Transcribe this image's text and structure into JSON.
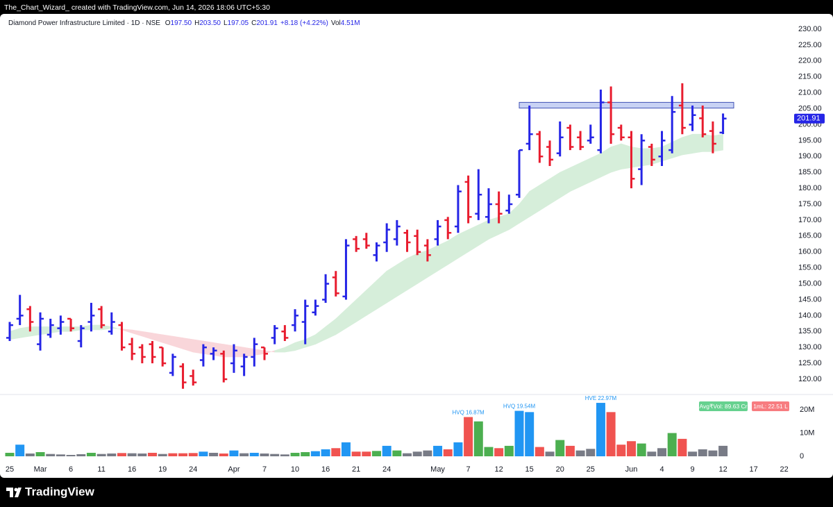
{
  "header": {
    "watermark": "The_Chart_Wizard_ created with TradingView.com, Jun 14, 2026 18:06 UTC+5:30"
  },
  "footer": {
    "logo": "TradingView"
  },
  "chart_data": {
    "type": "ohlc",
    "title": "Diamond Power Infrastructure Limited · 1D · NSE",
    "legend_ohlc": [
      {
        "key": "O",
        "value": "197.50"
      },
      {
        "key": "H",
        "value": "203.50"
      },
      {
        "key": "L",
        "value": "197.05"
      },
      {
        "key": "C",
        "value": "201.91"
      }
    ],
    "change": "+8.18 (+4.22%)",
    "vol_key": "Vol",
    "vol_value": "4.51M",
    "up_color": "#2525e6",
    "down_color": "#e81c2e",
    "categories": [
      "25",
      null,
      null,
      "Mar",
      null,
      null,
      "6",
      null,
      null,
      "11",
      null,
      null,
      "16",
      null,
      null,
      "19",
      null,
      null,
      "24",
      null,
      null,
      null,
      "Apr",
      null,
      null,
      "7",
      null,
      null,
      "10",
      null,
      null,
      "16",
      null,
      null,
      "21",
      null,
      null,
      "24",
      null,
      null,
      null,
      null,
      "May",
      null,
      null,
      "7",
      null,
      null,
      "12",
      null,
      null,
      "15",
      null,
      null,
      "20",
      null,
      null,
      "25",
      null,
      null,
      null,
      "Jun",
      null,
      null,
      "4",
      null,
      null,
      "9",
      null,
      null,
      "12",
      null,
      null,
      "17",
      null,
      null,
      "22"
    ],
    "open": [
      133,
      139,
      142,
      131,
      134,
      136,
      139,
      132,
      138,
      142,
      135,
      137,
      131,
      130,
      131,
      130,
      122,
      124,
      121,
      126,
      128,
      128,
      125,
      124,
      127,
      130,
      133,
      135,
      137,
      138,
      141,
      145,
      152,
      146,
      164,
      164,
      159,
      163,
      164,
      166,
      165,
      162,
      164,
      170,
      168,
      182,
      172,
      171,
      175,
      173,
      178,
      194,
      197,
      193,
      191,
      199,
      196,
      195,
      192,
      207,
      199,
      196,
      186,
      193,
      190,
      192,
      206,
      200,
      202,
      198,
      197.5,
      null,
      null,
      null,
      null,
      null,
      null
    ],
    "high": [
      138,
      146.5,
      143,
      141,
      139,
      140,
      139,
      137,
      144,
      143,
      141,
      138,
      133,
      131,
      132,
      130,
      128,
      125,
      123,
      131,
      130,
      129,
      131,
      128,
      133,
      130,
      137,
      137,
      142,
      145,
      145,
      153,
      154,
      164,
      165,
      166,
      163,
      169,
      170,
      167,
      167,
      164,
      170,
      171,
      181,
      184,
      186,
      180,
      179,
      178,
      192,
      206,
      198,
      195,
      201,
      200,
      198,
      200,
      211,
      212,
      200,
      198,
      197,
      194,
      198,
      209,
      213,
      206,
      206,
      201,
      203.5,
      null,
      null,
      null,
      null,
      null,
      null
    ],
    "low": [
      132,
      137,
      135,
      129,
      133,
      134,
      135,
      130,
      135,
      136,
      134,
      129,
      126,
      125,
      125,
      124,
      121,
      117,
      118,
      124,
      126,
      119,
      122,
      121,
      124,
      126,
      131,
      132,
      135,
      131,
      140,
      144,
      146,
      145,
      160,
      161,
      157,
      160,
      162,
      160,
      159,
      157,
      162,
      164,
      166,
      169,
      170,
      169,
      169,
      172,
      177,
      192,
      188,
      187,
      190,
      192,
      192,
      194,
      191,
      194,
      195,
      180,
      181,
      187,
      187,
      191,
      197,
      198,
      196,
      191,
      197.05,
      null,
      null,
      null,
      null,
      null,
      null
    ],
    "close": [
      137,
      140,
      138,
      139,
      137,
      138,
      136,
      136,
      140,
      137,
      138,
      130,
      128,
      127,
      127,
      125,
      127,
      119,
      119,
      130,
      129,
      120,
      129,
      127,
      131,
      128,
      136,
      133,
      140,
      143,
      143,
      150,
      147,
      162,
      161,
      162,
      162,
      167,
      168,
      163,
      160,
      159,
      168,
      166,
      179,
      171,
      178,
      175,
      172,
      175,
      192,
      197,
      190,
      189,
      196,
      193,
      193,
      196,
      207,
      197,
      196,
      183,
      195,
      189,
      195,
      204,
      199,
      203,
      197,
      194,
      201.91,
      null,
      null,
      null,
      null,
      null,
      null
    ],
    "cloud_fast": [
      135,
      136,
      136.5,
      136.5,
      136.5,
      136.5,
      136.5,
      136.5,
      137,
      137,
      136.5,
      135.5,
      134.5,
      133.5,
      132.5,
      131.5,
      130.5,
      129.5,
      128.5,
      128,
      127.5,
      127,
      127,
      127,
      127.5,
      128,
      129,
      130,
      131.5,
      132.5,
      134,
      136.5,
      139,
      142,
      145,
      148,
      151,
      154,
      156,
      158,
      159.5,
      160.5,
      162,
      163.5,
      165.5,
      167,
      168.5,
      170,
      171,
      172,
      175,
      179,
      181,
      183,
      185,
      186.5,
      188,
      189.5,
      191,
      193,
      194,
      193,
      192.5,
      192.5,
      193,
      194.5,
      196,
      197,
      197,
      196.5,
      197,
      null,
      null,
      null,
      null,
      null,
      null
    ],
    "cloud_slow": [
      132.5,
      133,
      133.5,
      134,
      134.5,
      135,
      135,
      135.5,
      135.5,
      135.5,
      136,
      135.8,
      135.5,
      135,
      134.5,
      134,
      133.5,
      133,
      132.5,
      132,
      131.5,
      131,
      130.5,
      130,
      129.5,
      129,
      128.5,
      128.5,
      129,
      130,
      131,
      132.5,
      134,
      136,
      138,
      140,
      142,
      144,
      146,
      148,
      150,
      152,
      154,
      156,
      158,
      160,
      162,
      164,
      165.5,
      167,
      169,
      171,
      173,
      175,
      177,
      179,
      180.5,
      182,
      183.5,
      185,
      186,
      186.5,
      187,
      187.5,
      188.5,
      189.5,
      190.5,
      191,
      191.5,
      191.5,
      192,
      null,
      null,
      null,
      null,
      null,
      null
    ],
    "cloud_up_color": "#d6eeda",
    "cloud_down_color": "#f9d6da",
    "zone": [
      205.2,
      207
    ],
    "zone_color": "#c8d2f4",
    "ylim": [
      120,
      230
    ],
    "yticks": [
      {
        "value": 120,
        "label": "120.00"
      },
      {
        "value": 125,
        "label": "125.00"
      },
      {
        "value": 130,
        "label": "130.00"
      },
      {
        "value": 135,
        "label": "135.00"
      },
      {
        "value": 140,
        "label": "140.00"
      },
      {
        "value": 145,
        "label": "145.00"
      },
      {
        "value": 150,
        "label": "150.00"
      },
      {
        "value": 155,
        "label": "155.00"
      },
      {
        "value": 160,
        "label": "160.00"
      },
      {
        "value": 165,
        "label": "165.00"
      },
      {
        "value": 170,
        "label": "170.00"
      },
      {
        "value": 175,
        "label": "175.00"
      },
      {
        "value": 180,
        "label": "180.00"
      },
      {
        "value": 185,
        "label": "185.00"
      },
      {
        "value": 190,
        "label": "190.00"
      },
      {
        "value": 195,
        "label": "195.00"
      },
      {
        "value": 200,
        "label": "200.00"
      },
      {
        "value": 205,
        "label": "205.00"
      },
      {
        "value": 210,
        "label": "210.00"
      },
      {
        "value": 215,
        "label": "215.00"
      },
      {
        "value": 220,
        "label": "220.00"
      },
      {
        "value": 225,
        "label": "225.00"
      },
      {
        "value": 230,
        "label": "230.00"
      }
    ],
    "last_price": {
      "value": 201.91,
      "label": "201.91"
    },
    "volume": {
      "values": [
        1.5,
        5.0,
        1.2,
        1.8,
        1.0,
        0.8,
        0.6,
        0.9,
        1.5,
        1.0,
        1.2,
        1.4,
        1.3,
        1.2,
        1.5,
        1.0,
        1.3,
        1.3,
        1.4,
        2.0,
        1.5,
        1.2,
        2.5,
        1.3,
        1.5,
        1.2,
        1.0,
        0.8,
        1.5,
        1.8,
        2.2,
        3.0,
        3.5,
        6.0,
        2.0,
        2.0,
        2.3,
        4.5,
        2.5,
        1.3,
        2.0,
        2.5,
        4.5,
        3.0,
        6.0,
        16.87,
        15.0,
        4.0,
        3.5,
        4.5,
        19.54,
        19.0,
        4.0,
        2.0,
        7.0,
        4.5,
        2.5,
        3.2,
        22.97,
        19.0,
        5.0,
        6.5,
        5.5,
        2.0,
        3.5,
        10.0,
        7.5,
        2.0,
        3.0,
        2.5,
        4.51,
        null,
        null,
        null,
        null,
        null,
        null
      ],
      "value_labels": [
        null,
        null,
        null,
        null,
        null,
        null,
        null,
        null,
        null,
        null,
        null,
        null,
        null,
        null,
        null,
        null,
        null,
        null,
        null,
        null,
        null,
        null,
        null,
        null,
        null,
        null,
        null,
        null,
        null,
        null,
        null,
        null,
        null,
        null,
        null,
        null,
        null,
        null,
        null,
        null,
        null,
        null,
        null,
        null,
        null,
        "HVQ 16.87M",
        null,
        null,
        null,
        null,
        "HVQ 19.54M",
        null,
        null,
        null,
        null,
        null,
        null,
        null,
        "HVE 22.97M",
        null,
        null,
        null,
        null,
        null,
        null,
        null,
        null,
        null,
        null,
        null,
        null,
        null,
        null,
        null,
        null,
        null,
        null
      ],
      "colors": [
        "#4caf50",
        "#2196f3",
        "#787b86",
        "#4caf50",
        "#787b86",
        "#787b86",
        "#787b86",
        "#787b86",
        "#4caf50",
        "#787b86",
        "#787b86",
        "#f05350",
        "#787b86",
        "#787b86",
        "#f05350",
        "#787b86",
        "#f05350",
        "#f05350",
        "#f05350",
        "#2196f3",
        "#787b86",
        "#f05350",
        "#2196f3",
        "#787b86",
        "#2196f3",
        "#787b86",
        "#787b86",
        "#787b86",
        "#4caf50",
        "#4caf50",
        "#2196f3",
        "#2196f3",
        "#f05350",
        "#2196f3",
        "#f05350",
        "#f05350",
        "#4caf50",
        "#2196f3",
        "#4caf50",
        "#787b86",
        "#787b86",
        "#787b86",
        "#2196f3",
        "#f05350",
        "#2196f3",
        "#f05350",
        "#4caf50",
        "#4caf50",
        "#f05350",
        "#4caf50",
        "#2196f3",
        "#2196f3",
        "#f05350",
        "#787b86",
        "#4caf50",
        "#f05350",
        "#787b86",
        "#787b86",
        "#2196f3",
        "#f05350",
        "#f05350",
        "#f05350",
        "#4caf50",
        "#787b86",
        "#787b86",
        "#4caf50",
        "#f05350",
        "#787b86",
        "#787b86",
        "#787b86",
        "#787b86",
        null,
        null,
        null,
        null,
        null,
        null
      ],
      "label_color": "#2196f3",
      "ylim": [
        0,
        28
      ],
      "yticks": [
        0,
        {
          "value": 10,
          "label": "10M"
        },
        {
          "value": 20,
          "label": "20M"
        }
      ],
      "badges": [
        "Avg₹Vol: 89.63 Cr",
        "1mL: 22.51 L"
      ]
    }
  }
}
